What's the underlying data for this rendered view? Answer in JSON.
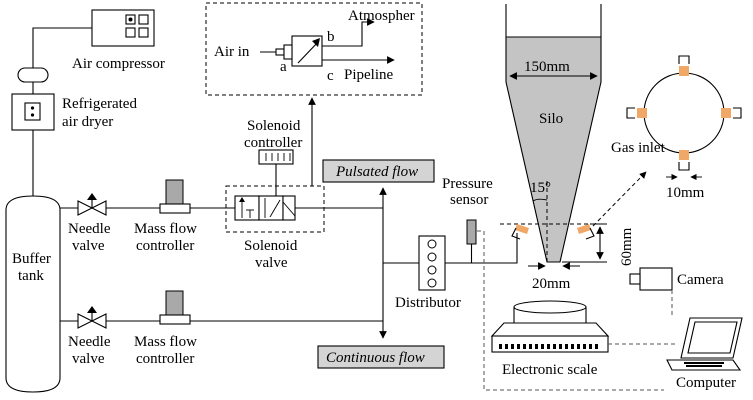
{
  "labels": {
    "air_compressor": "Air compressor",
    "refrigerated_1": "Refrigerated",
    "refrigerated_2": "air dryer",
    "buffer_1": "Buffer",
    "buffer_2": "tank",
    "needle_valve_top_1": "Needle",
    "needle_valve_top_2": "valve",
    "needle_valve_bottom_1": "Needle",
    "needle_valve_bottom_2": "valve",
    "mfc_top_1": "Mass flow",
    "mfc_top_2": "controller",
    "mfc_bottom_1": "Mass flow",
    "mfc_bottom_2": "controller",
    "solenoid_controller_1": "Solenoid",
    "solenoid_controller_2": "controller",
    "solenoid_valve_1": "Solenoid",
    "solenoid_valve_2": "valve",
    "air_in": "Air in",
    "port_a": "a",
    "port_b": "b",
    "port_c": "c",
    "atmosphere": "Atmospher",
    "pipeline": "Pipeline",
    "pulsated_flow": "Pulsated flow",
    "continuous_flow": "Continuous flow",
    "distributor": "Distributor",
    "pressure_1": "Pressure",
    "pressure_2": "sensor",
    "dim_150": "150mm",
    "silo": "Silo",
    "angle_15": "15°",
    "dim_60": "60mm",
    "dim_20": "20mm",
    "gas_inlet": "Gas inlet",
    "dim_10": "10mm",
    "camera": "Camera",
    "electronic_scale": "Electronic scale",
    "computer": "Computer"
  },
  "colors": {
    "line": "#000000",
    "silo_fill": "#c4c4c4",
    "flow_box": "#d4d4d4",
    "inlet_orange": "#f0a868",
    "inlet_blue": "#1f3fbf"
  }
}
